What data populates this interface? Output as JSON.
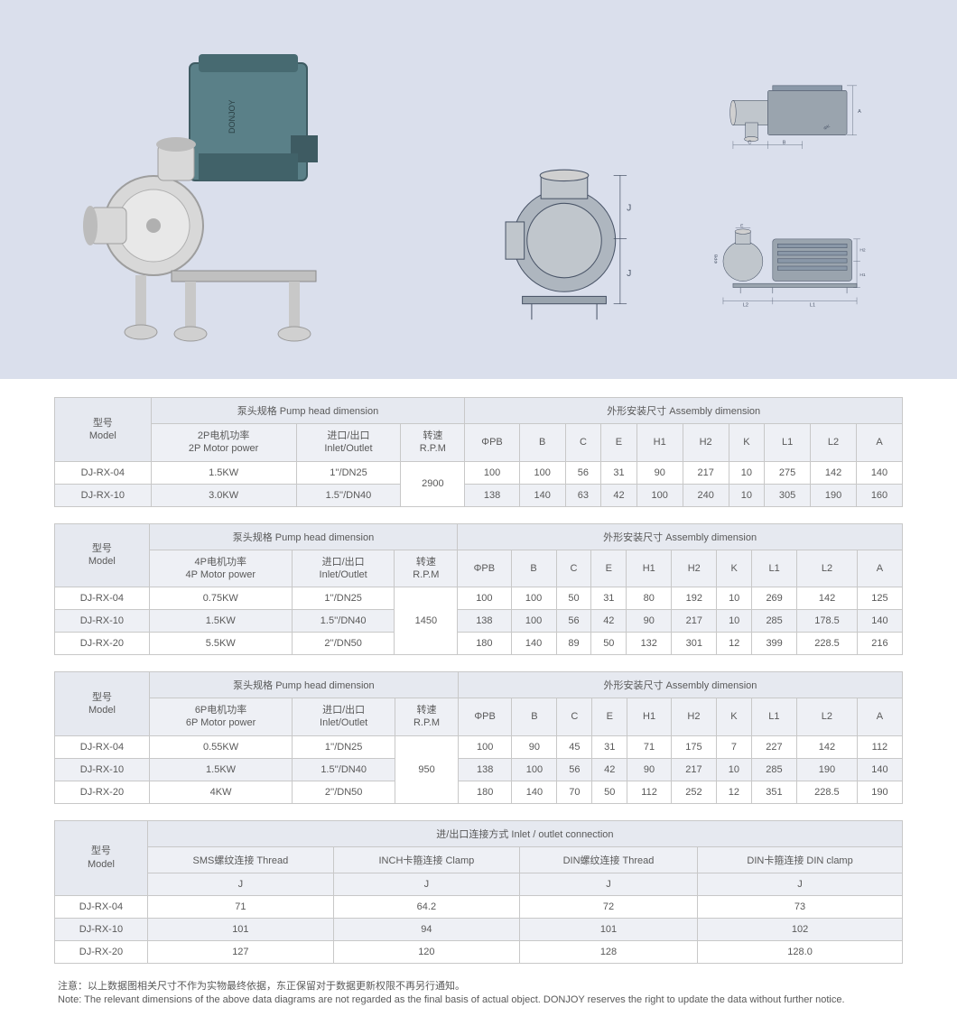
{
  "colors": {
    "hero_bg": "#dadfec",
    "table_header_bg": "#eef0f5",
    "table_stripe_bg": "#eef0f5",
    "table_border": "#c8c8c8",
    "text": "#595959",
    "drawing_stroke": "#4a5568",
    "drawing_fill": "#8a98a8",
    "pump_body": "#5a8088",
    "pump_steel": "#c0c0c0"
  },
  "headers": {
    "model_label_zh": "型号",
    "model_label_en": "Model",
    "pump_head_dim": "泵头规格 Pump head dimension",
    "assembly_dim": "外形安装尺寸 Assembly dimension",
    "inlet_outlet_conn": "进/出口连接方式 Inlet / outlet connection",
    "motor_2p_zh": "2P电机功率",
    "motor_2p_en": "2P Motor power",
    "motor_4p_zh": "4P电机功率",
    "motor_4p_en": "4P Motor power",
    "motor_6p_zh": "6P电机功率",
    "motor_6p_en": "6P Motor power",
    "inlet_zh": "进口/出口",
    "inlet_en": "Inlet/Outlet",
    "rpm_zh": "转速",
    "rpm_en": "R.P.M",
    "cols": {
      "phiPB": "ΦPB",
      "B": "B",
      "C": "C",
      "E": "E",
      "H1": "H1",
      "H2": "H2",
      "K": "K",
      "L1": "L1",
      "L2": "L2",
      "A": "A",
      "J": "J"
    },
    "sms_thread": "SMS螺纹连接 Thread",
    "inch_clamp": "INCH卡箍连接 Clamp",
    "din_thread": "DIN螺纹连接 Thread",
    "din_clamp": "DIN卡箍连接 DIN clamp"
  },
  "table_2p": {
    "rpm": "2900",
    "rows": [
      {
        "model": "DJ-RX-04",
        "power": "1.5KW",
        "inlet": "1''/DN25",
        "phiPB": "100",
        "B": "100",
        "C": "56",
        "E": "31",
        "H1": "90",
        "H2": "217",
        "K": "10",
        "L1": "275",
        "L2": "142",
        "A": "140"
      },
      {
        "model": "DJ-RX-10",
        "power": "3.0KW",
        "inlet": "1.5''/DN40",
        "phiPB": "138",
        "B": "140",
        "C": "63",
        "E": "42",
        "H1": "100",
        "H2": "240",
        "K": "10",
        "L1": "305",
        "L2": "190",
        "A": "160"
      }
    ]
  },
  "table_4p": {
    "rpm": "1450",
    "rows": [
      {
        "model": "DJ-RX-04",
        "power": "0.75KW",
        "inlet": "1''/DN25",
        "phiPB": "100",
        "B": "100",
        "C": "50",
        "E": "31",
        "H1": "80",
        "H2": "192",
        "K": "10",
        "L1": "269",
        "L2": "142",
        "A": "125"
      },
      {
        "model": "DJ-RX-10",
        "power": "1.5KW",
        "inlet": "1.5''/DN40",
        "phiPB": "138",
        "B": "100",
        "C": "56",
        "E": "42",
        "H1": "90",
        "H2": "217",
        "K": "10",
        "L1": "285",
        "L2": "178.5",
        "A": "140"
      },
      {
        "model": "DJ-RX-20",
        "power": "5.5KW",
        "inlet": "2''/DN50",
        "phiPB": "180",
        "B": "140",
        "C": "89",
        "E": "50",
        "H1": "132",
        "H2": "301",
        "K": "12",
        "L1": "399",
        "L2": "228.5",
        "A": "216"
      }
    ]
  },
  "table_6p": {
    "rpm": "950",
    "rows": [
      {
        "model": "DJ-RX-04",
        "power": "0.55KW",
        "inlet": "1''/DN25",
        "phiPB": "100",
        "B": "90",
        "C": "45",
        "E": "31",
        "H1": "71",
        "H2": "175",
        "K": "7",
        "L1": "227",
        "L2": "142",
        "A": "112"
      },
      {
        "model": "DJ-RX-10",
        "power": "1.5KW",
        "inlet": "1.5''/DN40",
        "phiPB": "138",
        "B": "100",
        "C": "56",
        "E": "42",
        "H1": "90",
        "H2": "217",
        "K": "10",
        "L1": "285",
        "L2": "190",
        "A": "140"
      },
      {
        "model": "DJ-RX-20",
        "power": "4KW",
        "inlet": "2''/DN50",
        "phiPB": "180",
        "B": "140",
        "C": "70",
        "E": "50",
        "H1": "112",
        "H2": "252",
        "K": "12",
        "L1": "351",
        "L2": "228.5",
        "A": "190"
      }
    ]
  },
  "table_conn": {
    "rows": [
      {
        "model": "DJ-RX-04",
        "sms": "71",
        "inch": "64.2",
        "dinT": "72",
        "dinC": "73"
      },
      {
        "model": "DJ-RX-10",
        "sms": "101",
        "inch": "94",
        "dinT": "101",
        "dinC": "102"
      },
      {
        "model": "DJ-RX-20",
        "sms": "127",
        "inch": "120",
        "dinT": "128",
        "dinC": "128.0"
      }
    ]
  },
  "note_zh": "注意：以上数据图相关尺寸不作为实物最终依据，东正保留对于数据更新权限不再另行通知。",
  "note_en": "Note: The relevant dimensions of the above data diagrams are not regarded as the final basis of actual object. DONJOY reserves the right to update the data without further notice.",
  "drawing_labels": {
    "A": "A",
    "B": "B",
    "C": "C",
    "E": "E",
    "H1": "H1",
    "H2": "H2",
    "K": "K",
    "L1": "L1",
    "L2": "L2",
    "J": "J",
    "phiPB": "ΦPB",
    "phiK": "ΦK"
  }
}
